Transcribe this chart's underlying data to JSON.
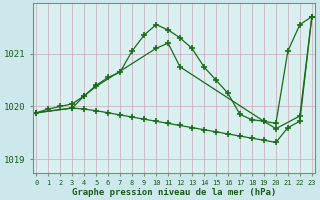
{
  "line1": {
    "x": [
      0,
      1,
      2,
      3,
      4,
      5,
      6,
      7,
      8,
      9,
      10,
      11,
      12,
      13,
      14,
      15,
      16,
      17,
      18,
      19,
      20,
      21,
      22,
      23
    ],
    "y": [
      1019.88,
      1019.95,
      1020.0,
      1020.05,
      1020.2,
      1020.4,
      1020.55,
      1020.65,
      1021.05,
      1021.35,
      1021.55,
      1021.45,
      1021.3,
      1021.1,
      1020.75,
      1020.5,
      1020.25,
      1019.85,
      1019.75,
      1019.72,
      1019.68,
      1021.05,
      1021.55,
      1021.7
    ]
  },
  "line2": {
    "x": [
      0,
      3,
      4,
      5,
      6,
      7,
      8,
      9,
      10,
      11,
      12,
      13,
      14,
      15,
      16,
      17,
      18,
      19,
      20,
      21,
      22,
      23
    ],
    "y": [
      1019.88,
      1019.97,
      1019.95,
      1019.92,
      1019.88,
      1019.84,
      1019.8,
      1019.76,
      1019.72,
      1019.68,
      1019.64,
      1019.6,
      1019.56,
      1019.52,
      1019.48,
      1019.44,
      1019.4,
      1019.36,
      1019.32,
      1019.6,
      1019.72,
      1021.7
    ]
  },
  "line3": {
    "comment": "Triangle-like line: 0 -> 3/4 -> peak ~10 -> 19 -> 23",
    "x": [
      0,
      3,
      4,
      5,
      10,
      11,
      12,
      19,
      20,
      22,
      23
    ],
    "y": [
      1019.88,
      1019.97,
      1020.2,
      1020.38,
      1021.1,
      1021.2,
      1020.75,
      1019.72,
      1019.58,
      1019.82,
      1021.7
    ]
  },
  "ylim": [
    1018.75,
    1021.95
  ],
  "yticks": [
    1019,
    1020,
    1021
  ],
  "xlim": [
    -0.3,
    23.3
  ],
  "xticks": [
    0,
    1,
    2,
    3,
    4,
    5,
    6,
    7,
    8,
    9,
    10,
    11,
    12,
    13,
    14,
    15,
    16,
    17,
    18,
    19,
    20,
    21,
    22,
    23
  ],
  "xlabel": "Graphe pression niveau de la mer (hPa)",
  "line_color": "#1a6b1a",
  "bg_color": "#cce8ec",
  "plot_bg": "#d8f0f0",
  "grid_color": "#b8d8dc",
  "label_color": "#1a5c1a",
  "tick_color": "#1a5c1a",
  "border_color": "#6a9a6a"
}
